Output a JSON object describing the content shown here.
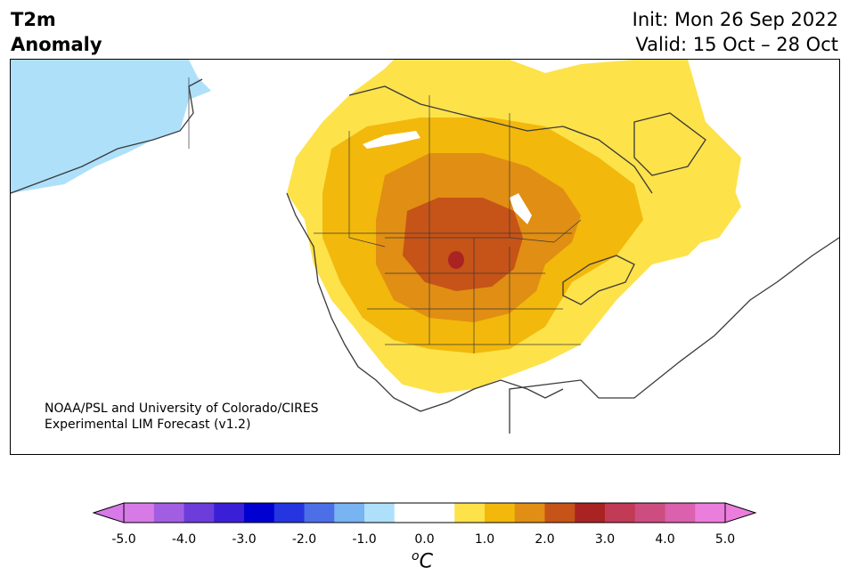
{
  "header": {
    "title_line1": "T2m",
    "title_line2": "Anomaly",
    "init": "Init: Mon 26 Sep 2022",
    "valid": "Valid: 15 Oct – 28 Oct"
  },
  "credit": {
    "line1": "NOAA/PSL and University of Colorado/CIRES",
    "line2": "Experimental LIM Forecast (v1.2)"
  },
  "colorbar": {
    "unit_base": "C",
    "unit_sup": "o",
    "ticks": [
      "-5.0",
      "-4.0",
      "-3.0",
      "-2.0",
      "-1.0",
      "0.0",
      "1.0",
      "2.0",
      "3.0",
      "4.0",
      "5.0"
    ],
    "colors": [
      "#d77ae8",
      "#a25ee2",
      "#6c3ddb",
      "#3b1fd6",
      "#0000d0",
      "#2535e0",
      "#4c6fe8",
      "#78b3f2",
      "#aee0fa",
      "#ffffff",
      "#ffffff",
      "#fde24a",
      "#f2b80b",
      "#e08e14",
      "#c65317",
      "#aa2323",
      "#c13a56",
      "#cd4d80",
      "#db60ad",
      "#eb7ddc"
    ],
    "bands": [
      -5.0,
      -4.5,
      -4.0,
      -3.5,
      -3.0,
      -2.5,
      -2.0,
      -1.5,
      -1.0,
      -0.5,
      0.0,
      0.5,
      1.0,
      1.5,
      2.0,
      2.5,
      3.0,
      3.5,
      4.0,
      4.5,
      5.0
    ]
  }
}
